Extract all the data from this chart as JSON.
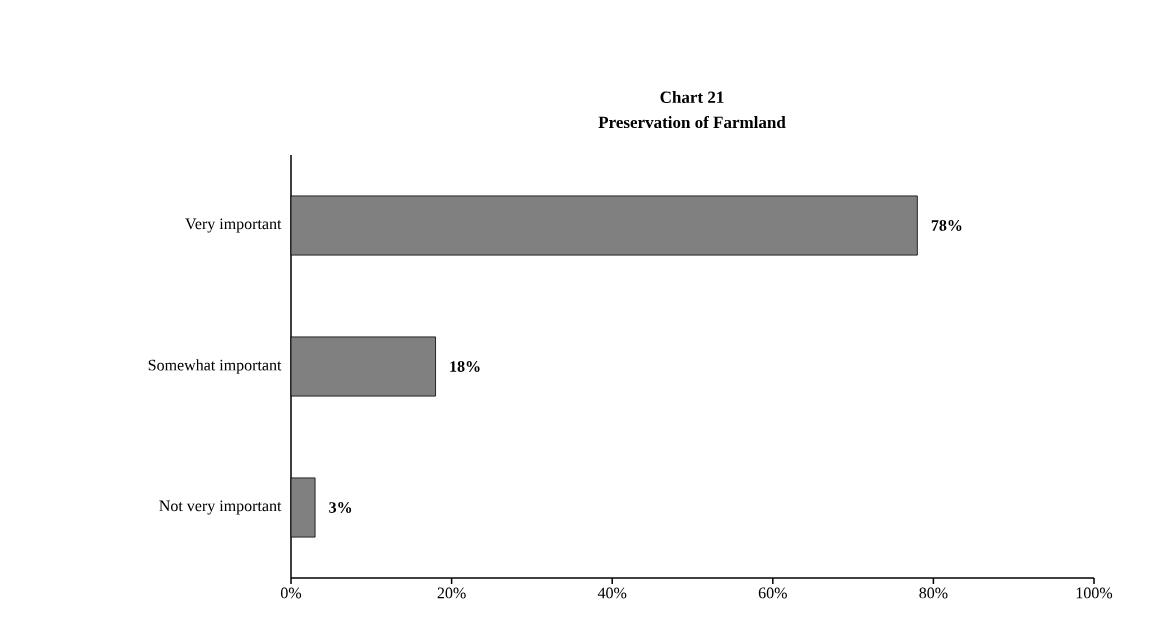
{
  "chart_data": {
    "type": "bar",
    "orientation": "horizontal",
    "title": "Chart 21",
    "subtitle": "Preservation of Farmland",
    "categories": [
      "Very important",
      "Somewhat important",
      "Not very important"
    ],
    "values": [
      78,
      18,
      3
    ],
    "color": "#808080",
    "value_labels": [
      "78%",
      "18%",
      "3%"
    ],
    "xlim": [
      0,
      100
    ],
    "xticks": [
      {
        "value": 0,
        "label": "0%"
      },
      {
        "value": 20,
        "label": "20%"
      },
      {
        "value": 40,
        "label": "40%"
      },
      {
        "value": 60,
        "label": "60%"
      },
      {
        "value": 80,
        "label": "80%"
      },
      {
        "value": 100,
        "label": "100%"
      }
    ]
  }
}
